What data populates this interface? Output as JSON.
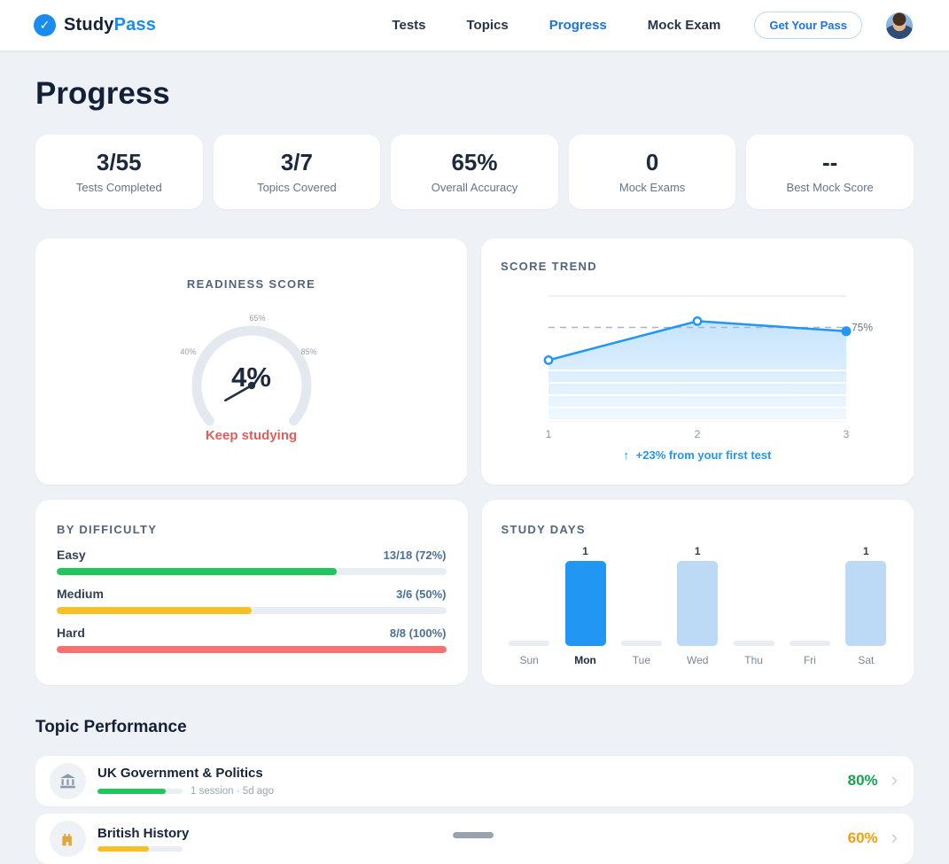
{
  "brand": {
    "primary": "Study",
    "secondary": "Pass"
  },
  "icons": {
    "check": "✓",
    "chevron": "›",
    "arrow_up": "↑"
  },
  "nav": {
    "items": [
      {
        "label": "Tests",
        "active": false
      },
      {
        "label": "Topics",
        "active": false
      },
      {
        "label": "Progress",
        "active": true
      },
      {
        "label": "Mock Exam",
        "active": false
      }
    ],
    "cta_label": "Get Your Pass"
  },
  "page": {
    "title": "Progress"
  },
  "stats": [
    {
      "value": "3/55",
      "label": "Tests Completed"
    },
    {
      "value": "3/7",
      "label": "Topics Covered"
    },
    {
      "value": "65%",
      "label": "Overall Accuracy"
    },
    {
      "value": "0",
      "label": "Mock Exams"
    },
    {
      "value": "--",
      "label": "Best Mock Score"
    }
  ],
  "chart_data": [
    {
      "id": "readiness_gauge",
      "type": "gauge",
      "title": "READINESS SCORE",
      "value": 4,
      "value_label": "4%",
      "min": 0,
      "max": 100,
      "tick_labels": [
        "40%",
        "65%",
        "85%"
      ],
      "status_message": "Keep studying",
      "status_color": "#e25c5c"
    },
    {
      "id": "score_trend",
      "type": "line",
      "title": "SCORE TREND",
      "x_labels": [
        "1",
        "2",
        "3"
      ],
      "values": [
        49,
        80,
        72
      ],
      "ylim": [
        0,
        100
      ],
      "reference_value": 75,
      "reference_label": "75%",
      "annotation": "+23% from your first test",
      "line_color": "#2196f3",
      "legend": false,
      "grid": true
    },
    {
      "id": "by_difficulty",
      "type": "bar",
      "orientation": "horizontal",
      "title": "BY DIFFICULTY",
      "categories": [
        "Easy",
        "Medium",
        "Hard"
      ],
      "values": [
        72,
        50,
        100
      ],
      "value_labels": [
        "13/18 (72%)",
        "3/6 (50%)",
        "8/8 (100%)"
      ],
      "colors": [
        "#22c55e",
        "#fbbf24",
        "#f87171"
      ],
      "xlim": [
        0,
        100
      ]
    },
    {
      "id": "study_days",
      "type": "bar",
      "title": "STUDY DAYS",
      "categories": [
        "Sun",
        "Mon",
        "Tue",
        "Wed",
        "Thu",
        "Fri",
        "Sat"
      ],
      "values": [
        0,
        1,
        0,
        1,
        0,
        0,
        1
      ],
      "count_labels": [
        "",
        "1",
        "",
        "1",
        "",
        "",
        "1"
      ],
      "bar_colors": [
        "#e7edf3",
        "#2196f3",
        "#e7edf3",
        "#bcd9f6",
        "#e7edf3",
        "#e7edf3",
        "#bcd9f6"
      ],
      "highlight_day": "Mon",
      "ylim": [
        0,
        1
      ]
    }
  ],
  "topics": {
    "heading": "Topic Performance",
    "rows": [
      {
        "icon": "government-building",
        "title": "UK Government & Politics",
        "meta": "1 session · 5d ago",
        "pct": 80,
        "pct_label": "80%",
        "pct_color": "#16a34a",
        "bar_color": "#22c55e"
      },
      {
        "icon": "castle",
        "title": "British History",
        "meta": "",
        "pct": 60,
        "pct_label": "60%",
        "pct_color": "#f59e0b",
        "bar_color": "#fbbf24"
      }
    ]
  },
  "colors": {
    "accent": "#2196f3",
    "nav_active": "#1a73e8",
    "background": "#eef1f6"
  }
}
